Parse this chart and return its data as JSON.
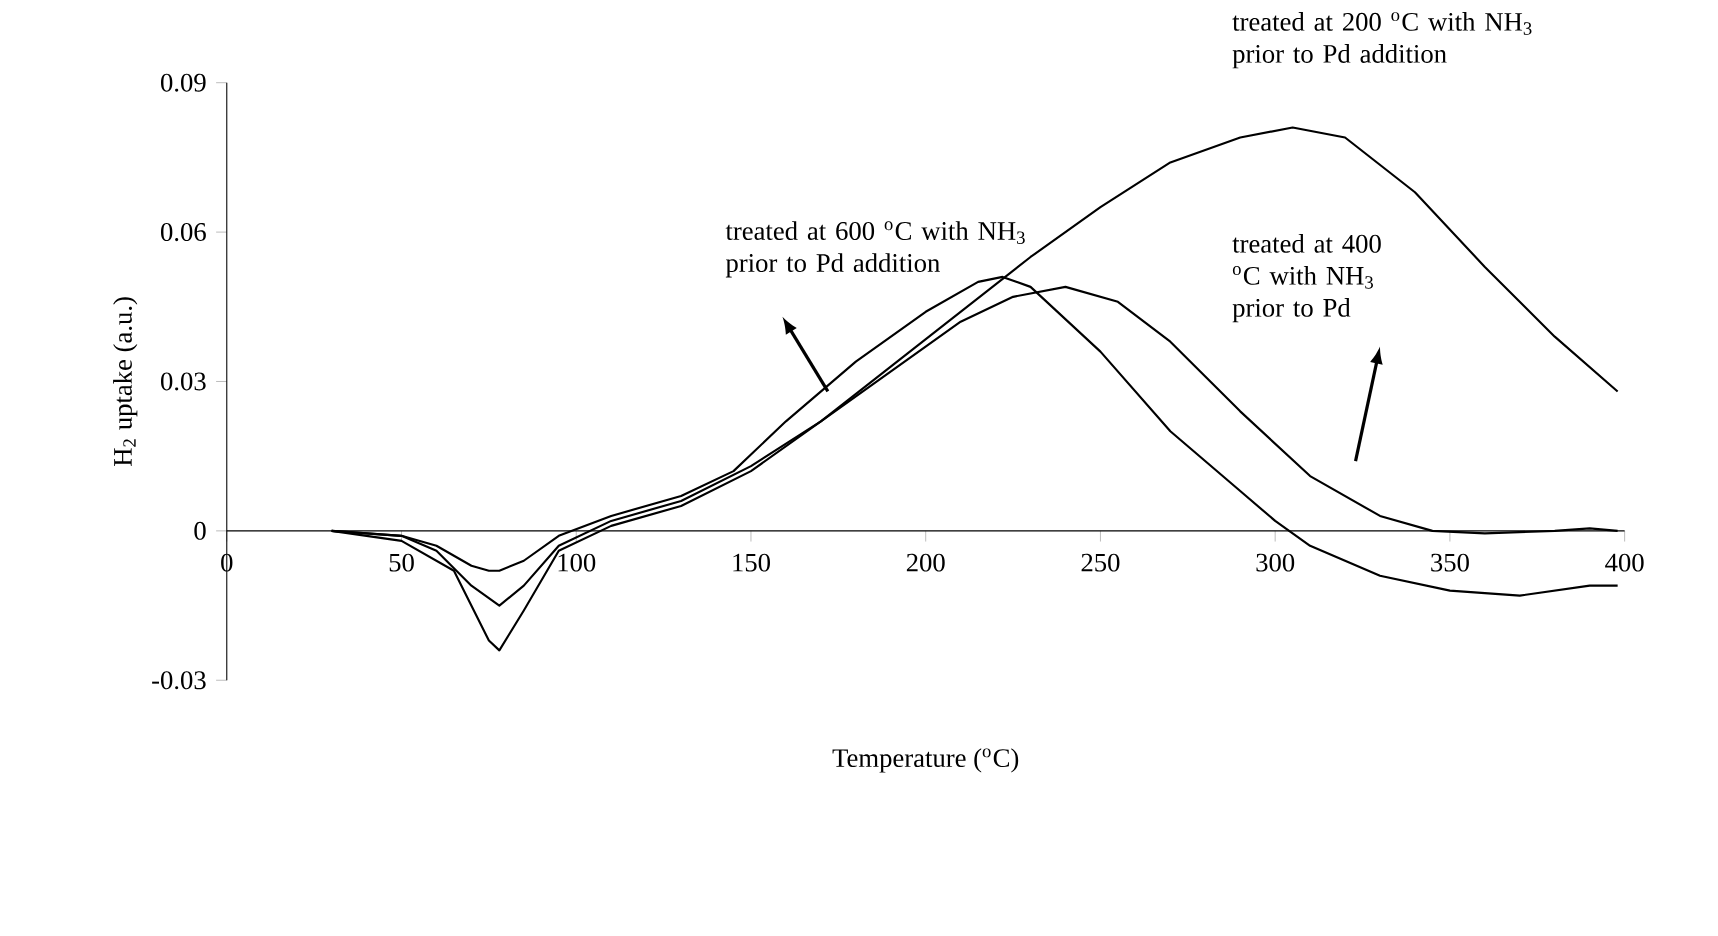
{
  "chart_data": {
    "type": "line",
    "xlabel": "Temperature ($^{o}$C)",
    "ylabel": "H$_{2}$ uptake (a.u.)",
    "xlim": [
      0,
      400
    ],
    "ylim": [
      -0.03,
      0.09
    ],
    "xticks": [
      0,
      50,
      100,
      150,
      200,
      250,
      300,
      350,
      400
    ],
    "yticks": [
      -0.03,
      0,
      0.03,
      0.06,
      0.09
    ],
    "grid": false,
    "legend": false,
    "marker": "none",
    "line_style": "solid",
    "series": [
      {
        "color": "#000000",
        "x": [
          30,
          50,
          60,
          70,
          75,
          78,
          85,
          95,
          110,
          130,
          145,
          160,
          180,
          200,
          215,
          222,
          230,
          250,
          270,
          290,
          300,
          310,
          330,
          350,
          370,
          380,
          390,
          398
        ],
        "values": [
          0,
          -0.001,
          -0.003,
          -0.007,
          -0.008,
          -0.008,
          -0.006,
          -0.001,
          0.003,
          0.007,
          0.012,
          0.022,
          0.034,
          0.044,
          0.05,
          0.051,
          0.049,
          0.036,
          0.02,
          0.008,
          0.002,
          -0.003,
          -0.009,
          -0.012,
          -0.013,
          -0.012,
          -0.011,
          -0.011
        ]
      },
      {
        "color": "#000000",
        "x": [
          30,
          50,
          60,
          70,
          78,
          85,
          95,
          110,
          130,
          150,
          170,
          190,
          210,
          225,
          240,
          255,
          270,
          290,
          310,
          330,
          345,
          360,
          380,
          390,
          398
        ],
        "values": [
          0,
          -0.001,
          -0.004,
          -0.011,
          -0.015,
          -0.011,
          -0.003,
          0.002,
          0.006,
          0.013,
          0.022,
          0.032,
          0.042,
          0.047,
          0.049,
          0.046,
          0.038,
          0.024,
          0.011,
          0.003,
          0,
          -0.0005,
          0,
          0.0005,
          0
        ]
      },
      {
        "color": "#000000",
        "x": [
          30,
          50,
          65,
          75,
          78,
          85,
          95,
          110,
          130,
          150,
          170,
          190,
          210,
          230,
          250,
          270,
          290,
          305,
          320,
          340,
          360,
          380,
          398
        ],
        "values": [
          0,
          -0.002,
          -0.008,
          -0.022,
          -0.024,
          -0.016,
          -0.004,
          0.001,
          0.005,
          0.012,
          0.022,
          0.033,
          0.044,
          0.055,
          0.065,
          0.074,
          0.079,
          0.081,
          0.079,
          0.068,
          0.053,
          0.039,
          0.028
        ]
      }
    ],
    "annotations": [
      "treated at 600 $^{o}$C with NH$_{3}$ prior to Pd addition",
      "treated at 400 $^{o}$C with NH$_{3}$ prior to Pd",
      "treated at 200 $^{o}$C with NH$_{3}$ prior to Pd addition"
    ]
  }
}
